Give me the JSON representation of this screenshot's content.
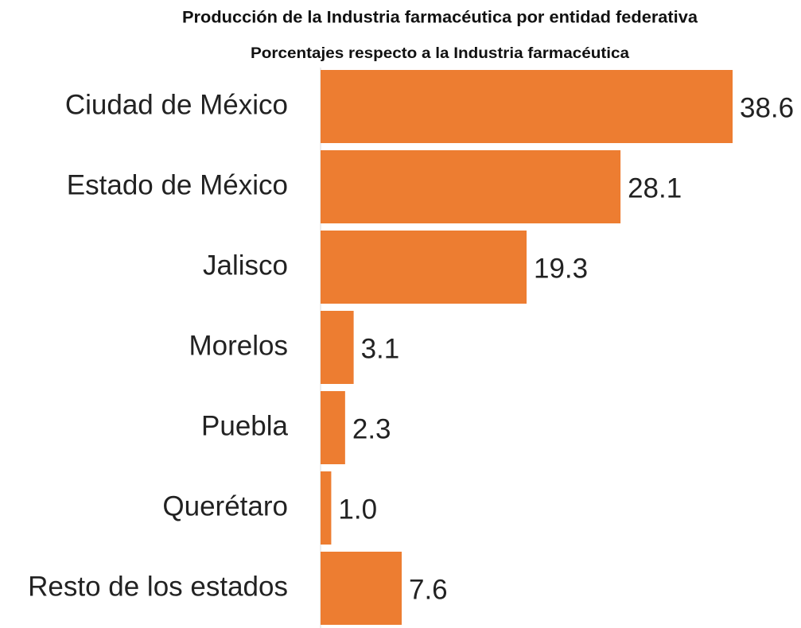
{
  "chart_data": {
    "type": "bar",
    "orientation": "horizontal",
    "title": "Producción de la Industria farmacéutica por entidad federativa",
    "subtitle": "Porcentajes respecto a la Industria farmacéutica",
    "categories": [
      "Ciudad de México",
      "Estado de México",
      "Jalisco",
      "Morelos",
      "Puebla",
      "Querétaro",
      "Resto de los estados"
    ],
    "values": [
      38.6,
      28.1,
      19.3,
      3.1,
      2.3,
      1.0,
      7.6
    ],
    "value_labels": [
      "38.6",
      "28.1",
      "19.3",
      "3.1",
      "2.3",
      "1.0",
      "7.6"
    ],
    "color": "#ed7d31",
    "xlim": [
      0,
      40
    ]
  }
}
